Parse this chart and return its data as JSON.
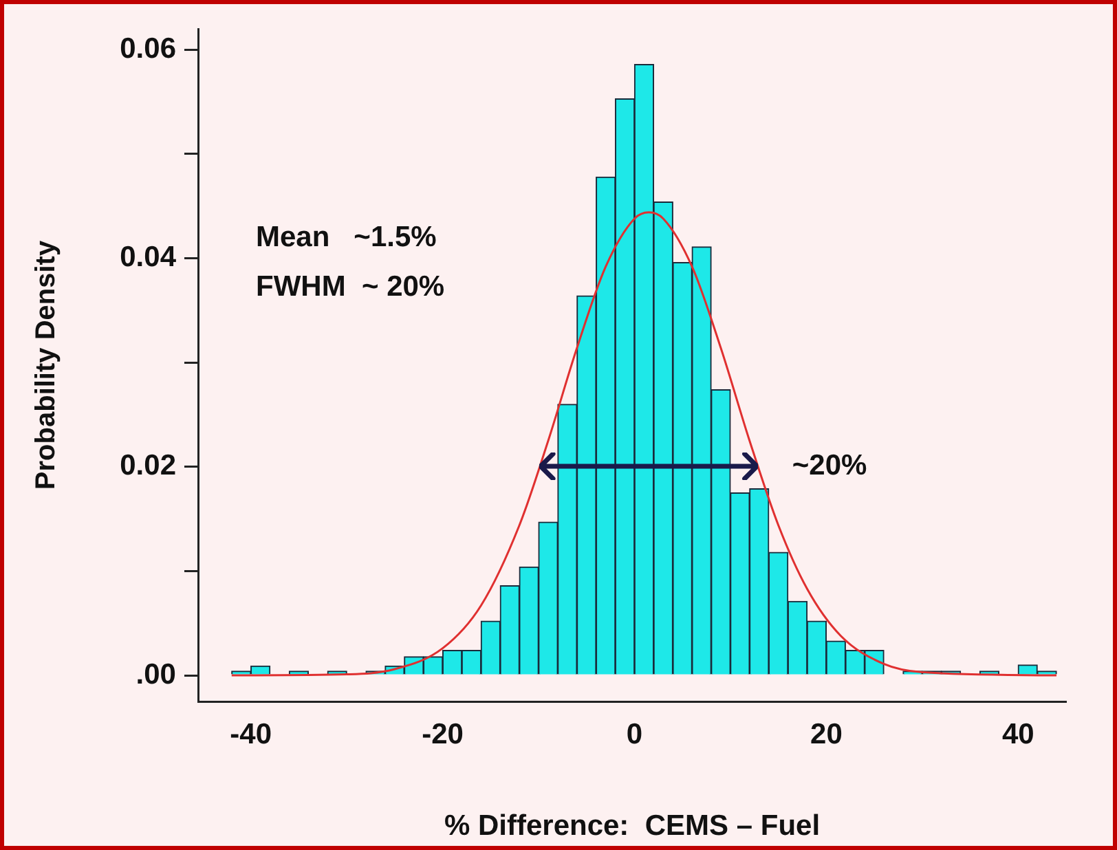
{
  "chart_data": {
    "type": "histogram",
    "xlabel": "% Difference:  CEMS – Fuel",
    "ylabel": "Probability Density",
    "bins": [
      -42,
      -40,
      -38,
      -36,
      -34,
      -32,
      -30,
      -28,
      -26,
      -24,
      -22,
      -20,
      -18,
      -16,
      -14,
      -12,
      -10,
      -8,
      -6,
      -4,
      -2,
      0,
      2,
      4,
      6,
      8,
      10,
      12,
      14,
      16,
      18,
      20,
      22,
      24,
      26,
      28,
      30,
      32,
      34,
      36,
      38,
      40,
      42,
      44
    ],
    "values": [
      0.0004,
      0.0009,
      0,
      0.0004,
      0,
      0.0004,
      0,
      0.0004,
      0.0009,
      0.0018,
      0.0018,
      0.0024,
      0.0024,
      0.0052,
      0.0086,
      0.0104,
      0.0147,
      0.026,
      0.0364,
      0.0478,
      0.0553,
      0.0586,
      0.0454,
      0.0396,
      0.0411,
      0.0274,
      0.0175,
      0.0179,
      0.0118,
      0.0071,
      0.0052,
      0.0033,
      0.0024,
      0.0024,
      0,
      0.0004,
      0.0004,
      0.0004,
      0,
      0.0004,
      0,
      0.001,
      0.0004
    ],
    "color": "#1ee8e8",
    "series": [
      {
        "type": "line",
        "color": "#e03030",
        "x": [
          -42,
          -30,
          -25,
          -20,
          -16,
          -12,
          -9,
          -6,
          -3,
          0,
          1.5,
          3,
          6,
          9,
          12,
          15,
          18,
          21.5,
          26,
          30,
          44
        ],
        "values": [
          0,
          0.0001,
          0.0006,
          0.0026,
          0.0067,
          0.0144,
          0.0225,
          0.0314,
          0.0392,
          0.0438,
          0.0444,
          0.0438,
          0.0392,
          0.0314,
          0.0225,
          0.0144,
          0.0083,
          0.0038,
          0.0011,
          0.0003,
          0
        ]
      }
    ],
    "marker": "none",
    "xlim": [
      -45.5,
      45
    ],
    "xticks": [
      -40,
      -20,
      0,
      20,
      40
    ],
    "ylim": [
      -0.0025,
      0.062
    ],
    "yticks": [
      {
        "value": 0,
        "label": ".00"
      },
      {
        "value": 0.01,
        "label": null
      },
      0.02,
      {
        "value": 0.03,
        "label": null
      },
      0.04,
      {
        "value": 0.05,
        "label": null
      },
      0.06
    ],
    "grid": false,
    "legend": false,
    "annotations": [
      "Mean   ~1.5%",
      "FWHM  ~ 20%",
      {
        "text": "~20%",
        "x": 13,
        "y": 0.02
      }
    ]
  }
}
